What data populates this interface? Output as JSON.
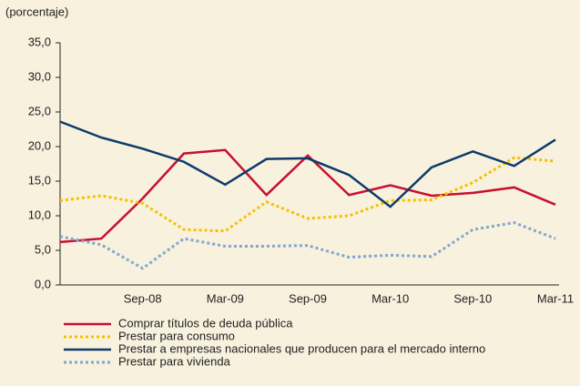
{
  "chart_data": {
    "type": "line",
    "title": "(porcentaje)",
    "categories": [
      null,
      null,
      "Sep-08",
      null,
      "Mar-09",
      null,
      "Sep-09",
      null,
      "Mar-10",
      null,
      "Sep-10",
      null,
      "Mar-11"
    ],
    "series": [
      {
        "name": "Comprar títulos de deuda pública",
        "color": "#c8102e",
        "dash": false,
        "values": [
          6.2,
          6.7,
          12.5,
          19.0,
          19.5,
          13.0,
          18.7,
          13.0,
          14.4,
          12.9,
          13.3,
          14.1,
          11.6
        ]
      },
      {
        "name": "Prestar para consumo",
        "color": "#f2c200",
        "dash": true,
        "values": [
          12.2,
          12.9,
          11.8,
          8.0,
          7.8,
          12.0,
          9.6,
          10.0,
          12.2,
          12.3,
          14.8,
          18.4,
          17.9
        ]
      },
      {
        "name": "Prestar a empresas nacionales que producen para el mercado interno",
        "color": "#0d3a6b",
        "dash": false,
        "values": [
          23.6,
          21.3,
          19.7,
          17.8,
          14.5,
          18.2,
          18.3,
          15.9,
          11.3,
          17.0,
          19.3,
          17.2,
          21.0
        ]
      },
      {
        "name": "Prestar para vivienda",
        "color": "#7fa8cf",
        "dash": true,
        "values": [
          7.0,
          5.8,
          2.4,
          6.7,
          5.6,
          5.6,
          5.7,
          4.0,
          4.3,
          4.1,
          8.0,
          9.0,
          6.7
        ]
      }
    ],
    "ylim": [
      0,
      35
    ],
    "yticks": [
      {
        "value": 0,
        "label": "0,0"
      },
      {
        "value": 5,
        "label": "5,0"
      },
      {
        "value": 10,
        "label": "10,0"
      },
      {
        "value": 15,
        "label": "15,0"
      },
      {
        "value": 20,
        "label": "20,0"
      },
      {
        "value": 25,
        "label": "25,0"
      },
      {
        "value": 30,
        "label": "30,0"
      },
      {
        "value": 35,
        "label": "35,0"
      }
    ],
    "legend": "bottom"
  }
}
